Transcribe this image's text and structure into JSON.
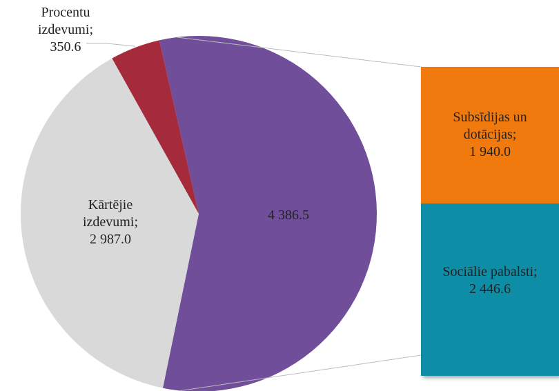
{
  "chart_data": {
    "type": "pie_of_bar",
    "label_separator": ";",
    "categories": [
      null,
      "Kārtējie izdevumi",
      "Procentu izdevumi"
    ],
    "values": [
      4386.5,
      2987.0,
      350.6
    ],
    "value_labels": [
      "4 386.5",
      "2 987.0",
      "350.6"
    ],
    "colors": [
      "#704e99",
      "#d9d9d9",
      "#a52b3c"
    ],
    "bar_categories": [
      "Subsīdijas un dotācijas",
      "Sociālie pabalsti"
    ],
    "bar_values": [
      1940.0,
      2446.6
    ],
    "bar_value_labels": [
      "1 940.0",
      "2 446.6"
    ],
    "bar_colors": [
      "#f07a08",
      "#0e8ea6"
    ]
  }
}
